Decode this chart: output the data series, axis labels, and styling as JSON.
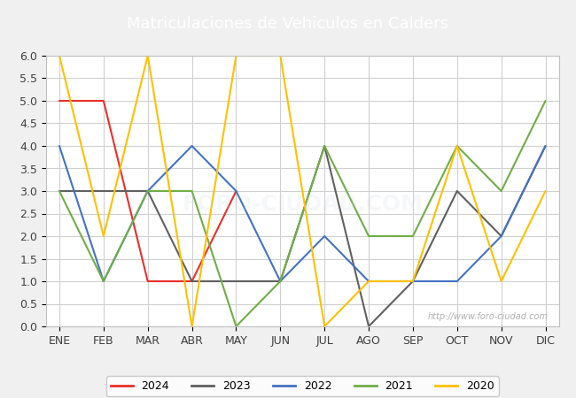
{
  "title": "Matriculaciones de Vehiculos en Calders",
  "title_color": "#ffffff",
  "title_bg_color": "#4472c4",
  "months": [
    "ENE",
    "FEB",
    "MAR",
    "ABR",
    "MAY",
    "JUN",
    "JUL",
    "AGO",
    "SEP",
    "OCT",
    "NOV",
    "DIC"
  ],
  "series": {
    "2024": {
      "color": "#e8302a",
      "data": [
        5,
        5,
        1,
        1,
        3,
        null,
        null,
        null,
        null,
        null,
        null,
        null
      ]
    },
    "2023": {
      "color": "#606060",
      "data": [
        3,
        3,
        3,
        1,
        1,
        1,
        4,
        0,
        1,
        3,
        2,
        4
      ]
    },
    "2022": {
      "color": "#4472c4",
      "data": [
        4,
        1,
        3,
        4,
        3,
        1,
        2,
        1,
        1,
        1,
        2,
        4
      ]
    },
    "2021": {
      "color": "#70ad47",
      "data": [
        3,
        1,
        3,
        3,
        0,
        1,
        4,
        2,
        2,
        4,
        3,
        5
      ]
    },
    "2020": {
      "color": "#ffc000",
      "data": [
        6,
        2,
        6,
        0,
        6,
        6,
        0,
        1,
        1,
        4,
        1,
        3
      ]
    }
  },
  "ylim": [
    0,
    6.0
  ],
  "yticks": [
    0.0,
    0.5,
    1.0,
    1.5,
    2.0,
    2.5,
    3.0,
    3.5,
    4.0,
    4.5,
    5.0,
    5.5,
    6.0
  ],
  "bg_color": "#f0f0f0",
  "plot_bg_color": "#ffffff",
  "grid_color": "#d0d0d0",
  "watermark": "http://www.foro-ciudad.com",
  "legend_order": [
    "2024",
    "2023",
    "2022",
    "2021",
    "2020"
  ]
}
